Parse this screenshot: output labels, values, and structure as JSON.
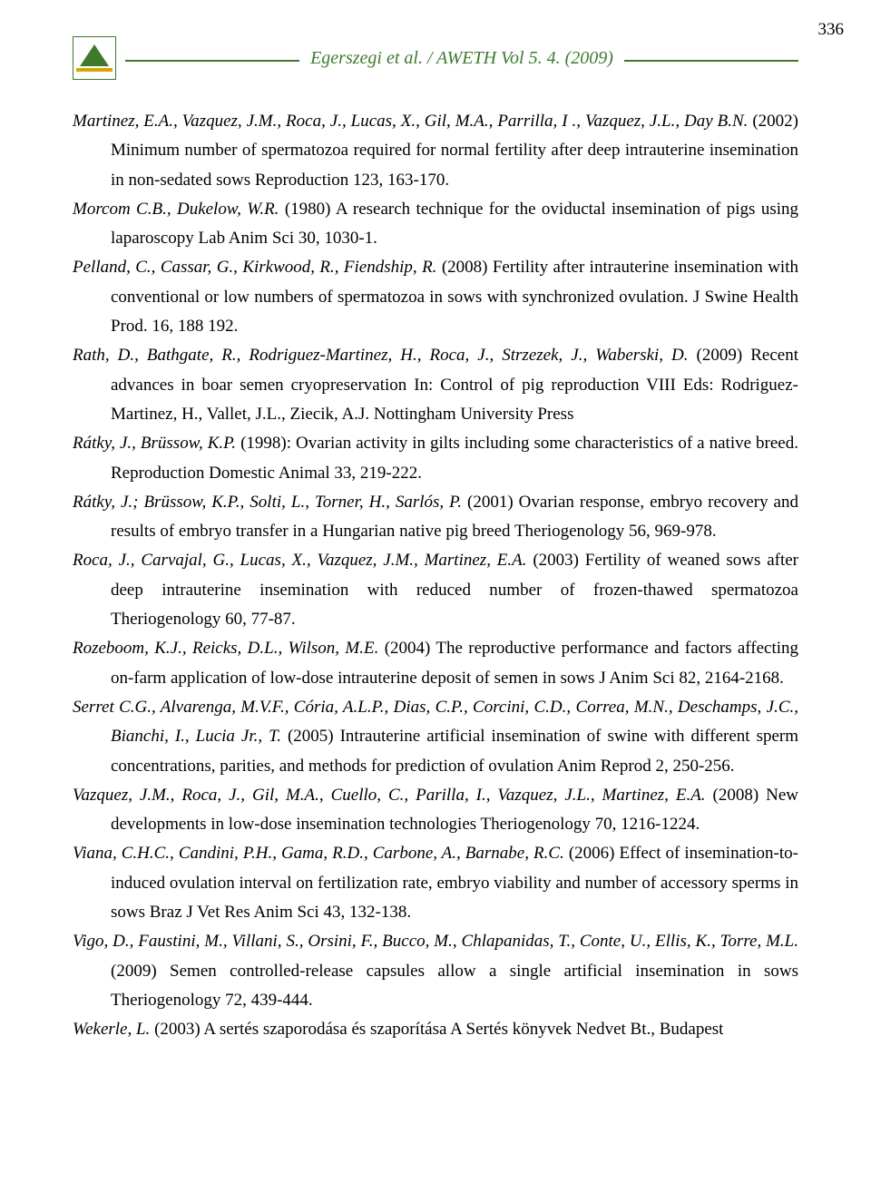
{
  "header": {
    "journal_line": "Egerszegi et al. / AWETH Vol 5. 4. (2009)",
    "page_number": "336"
  },
  "references": [
    {
      "authors": "Martinez, E.A., Vazquez, J.M., Roca, J., Lucas, X., Gil, M.A., Parrilla, I ., Vazquez, J.L., Day B.N.",
      "rest": " (2002) Minimum number of spermatozoa required for normal fertility after deep intrauterine insemination in non-sedated sows Reproduction 123, 163-170."
    },
    {
      "authors": "Morcom C.B., Dukelow, W.R.",
      "rest": " (1980) A research technique for the oviductal insemination of pigs using laparoscopy Lab Anim Sci 30, 1030-1."
    },
    {
      "authors": "Pelland, C., Cassar, G., Kirkwood, R., Fiendship, R.",
      "rest": " (2008) Fertility after intrauterine insemination with conventional or low numbers of spermatozoa in sows with synchronized ovulation. J Swine Health Prod. 16, 188 192."
    },
    {
      "authors": "Rath, D., Bathgate, R., Rodriguez-Martinez, H., Roca, J., Strzezek, J., Waberski, D.",
      "rest": " (2009) Recent advances in boar semen cryopreservation In: Control of pig reproduction VIII Eds: Rodriguez-Martinez, H., Vallet, J.L., Ziecik, A.J. Nottingham University Press"
    },
    {
      "authors": "Rátky, J., Brüssow, K.P.",
      "rest": " (1998): Ovarian activity in gilts including some characteristics of a native breed. Reproduction Domestic Animal 33, 219-222."
    },
    {
      "authors": "Rátky, J.; Brüssow, K.P., Solti, L., Torner, H., Sarlós, P.",
      "rest": " (2001) Ovarian response, embryo recovery and results of embryo transfer in a Hungarian native pig breed Theriogenology 56, 969-978."
    },
    {
      "authors": "Roca, J., Carvajal, G., Lucas, X., Vazquez, J.M., Martinez, E.A.",
      "rest": " (2003) Fertility of weaned sows after deep intrauterine insemination with reduced number of frozen-thawed spermatozoa Theriogenology 60, 77-87."
    },
    {
      "authors": "Rozeboom, K.J., Reicks, D.L., Wilson, M.E.",
      "rest": " (2004) The reproductive performance and factors affecting on-farm application of low-dose intrauterine deposit of semen in sows J Anim Sci 82, 2164-2168."
    },
    {
      "authors": "Serret C.G., Alvarenga, M.V.F., Cória, A.L.P., Dias, C.P., Corcini, C.D., Correa, M.N., Deschamps, J.C., Bianchi, I., Lucia Jr., T.",
      "rest": " (2005) Intrauterine artificial insemination of swine with different sperm concentrations, parities, and methods for prediction of ovulation Anim Reprod 2, 250-256."
    },
    {
      "authors": "Vazquez, J.M., Roca, J., Gil, M.A., Cuello, C., Parilla, I., Vazquez, J.L., Martinez, E.A.",
      "rest": " (2008) New developments in low-dose insemination technologies Theriogenology 70, 1216-1224."
    },
    {
      "authors": "Viana, C.H.C., Candini, P.H., Gama, R.D., Carbone, A., Barnabe, R.C.",
      "rest": " (2006) Effect of insemination-to-induced ovulation interval on fertilization rate, embryo viability and number of accessory sperms in sows Braz J Vet Res Anim Sci 43, 132-138."
    },
    {
      "authors": "Vigo, D., Faustini, M., Villani, S., Orsini, F., Bucco, M., Chlapanidas, T., Conte, U., Ellis, K., Torre, M.L.",
      "rest": " (2009) Semen controlled-release capsules allow a single artificial insemination in sows Theriogenology 72, 439-444."
    },
    {
      "authors": "Wekerle, L.",
      "rest": " (2003) A sertés szaporodása és szaporítása A Sertés könyvek Nedvet Bt., Budapest"
    }
  ]
}
